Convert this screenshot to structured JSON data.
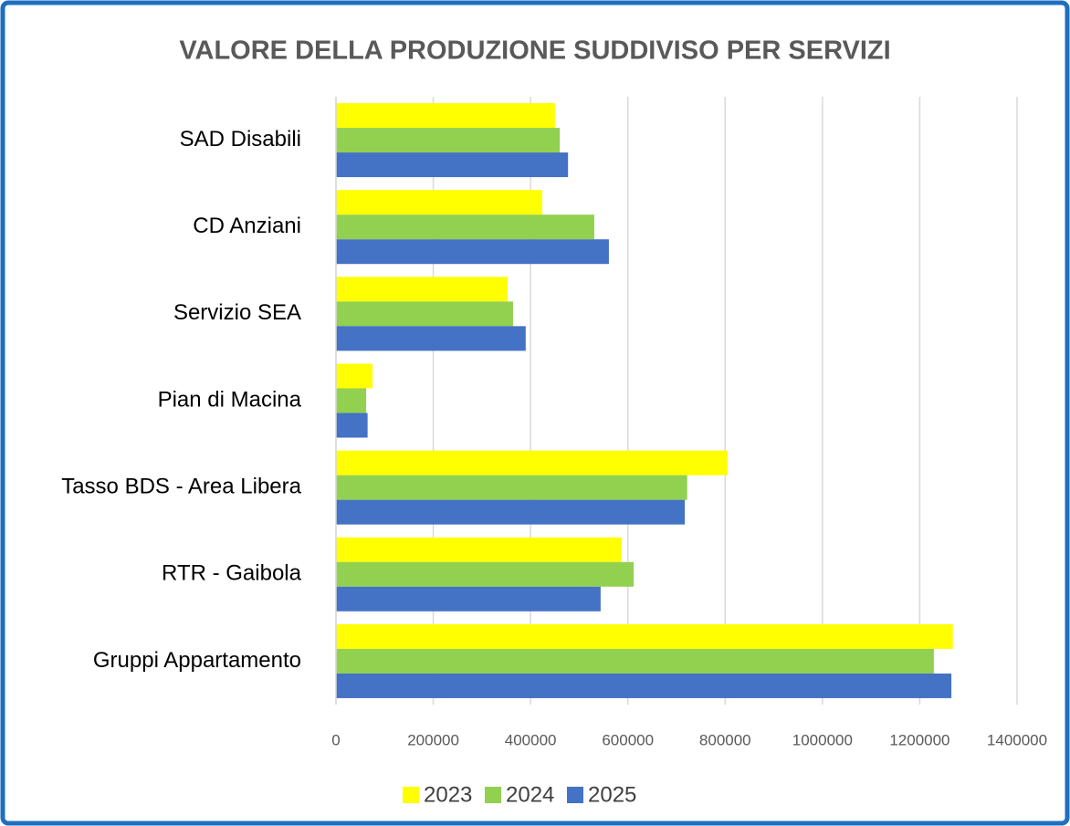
{
  "chart_data": {
    "type": "bar",
    "orientation": "horizontal",
    "title": "VALORE DELLA PRODUZIONE SUDDIVISO PER SERVIZI",
    "categories": [
      "SAD Disabili",
      "CD Anziani",
      "Servizio SEA",
      "Pian di Macina",
      "Tasso BDS - Area Libera",
      "RTR - Gaibola",
      "Gruppi Appartamento"
    ],
    "series": [
      {
        "name": "2023",
        "color": "#ffff00",
        "values": [
          450000,
          424000,
          353000,
          75000,
          805000,
          587000,
          1268000
        ]
      },
      {
        "name": "2024",
        "color": "#92d050",
        "values": [
          460000,
          531000,
          364000,
          62000,
          722000,
          612000,
          1229000
        ]
      },
      {
        "name": "2025",
        "color": "#4472c4",
        "values": [
          477000,
          561000,
          390000,
          65000,
          717000,
          544000,
          1265000
        ]
      }
    ],
    "xlim": [
      0,
      1400000
    ],
    "xticks": [
      0,
      200000,
      400000,
      600000,
      800000,
      1000000,
      1200000,
      1400000
    ],
    "grid": true,
    "legend": "bottom"
  }
}
